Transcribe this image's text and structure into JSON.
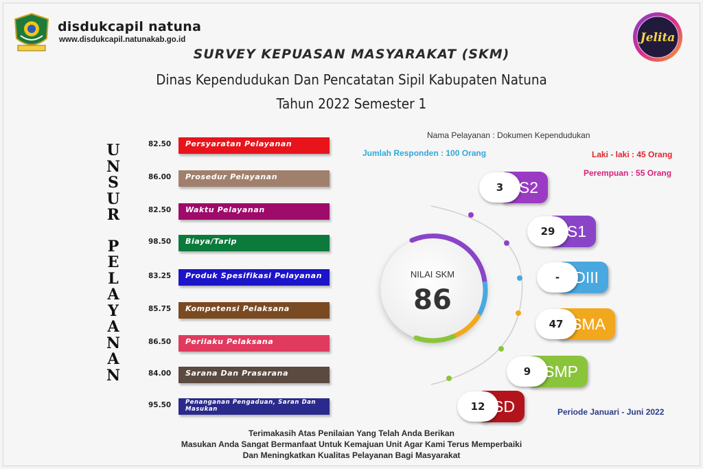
{
  "header": {
    "brand": "disdukcapil natuna",
    "url": "www.disdukcapil.natunakab.go.id",
    "logo_left_icon": "regency-emblem-icon",
    "logo_right_icon": "jelita-dukcapil-logo-icon",
    "logo_right_text": "Jelita"
  },
  "titles": {
    "line1": "SURVEY KEPUASAN MASYARAKAT (SKM)",
    "line2": "Dinas Kependudukan Dan Pencatatan Sipil Kabupaten Natuna",
    "line3": "Tahun 2022 Semester 1"
  },
  "unsur": {
    "word1": [
      "U",
      "N",
      "S",
      "U",
      "R"
    ],
    "word2": [
      "P",
      "E",
      "L",
      "A",
      "Y",
      "A",
      "N",
      "A",
      "N"
    ],
    "items": [
      {
        "score": "82.50",
        "label": "Persyaratan Pelayanan",
        "color": "#e8141b"
      },
      {
        "score": "86.00",
        "label": "Prosedur Pelayanan",
        "color": "#a0806c"
      },
      {
        "score": "82.50",
        "label": "Waktu Pelayanan",
        "color": "#9e0b6a"
      },
      {
        "score": "98.50",
        "label": "Biaya/Tarip",
        "color": "#0b7a3a"
      },
      {
        "score": "83.25",
        "label": "Produk Spesifikasi Pelayanan",
        "color": "#1c14c8"
      },
      {
        "score": "85.75",
        "label": "Kompetensi Pelaksana",
        "color": "#7a4a22"
      },
      {
        "score": "86.50",
        "label": "Perilaku Pelaksana",
        "color": "#e03a5e"
      },
      {
        "score": "84.00",
        "label": "Sarana Dan Prasarana",
        "color": "#5a4a40"
      },
      {
        "score": "95.50",
        "label": "Penanganan Pengaduan, Saran Dan Masukan",
        "color": "#2a2a8c"
      }
    ]
  },
  "info": {
    "nama_pelayanan": "Nama Pelayanan : Dokumen Kependudukan",
    "responden": "Jumlah Responden : 100 Orang",
    "laki": "Laki - laki  :  45 Orang",
    "perempuan": "Perempuan  :  55 Orang",
    "periode": "Periode Januari - Juni 2022"
  },
  "nilai": {
    "label": "NILAI SKM",
    "value": "86"
  },
  "pendidikan": [
    {
      "level": "S2",
      "count": "3",
      "color": "#9b3bc4"
    },
    {
      "level": "S1",
      "count": "29",
      "color": "#8a44c8"
    },
    {
      "level": "DIII",
      "count": "-",
      "color": "#4aa8e0"
    },
    {
      "level": "SMA",
      "count": "47",
      "color": "#f2a81c"
    },
    {
      "level": "SMP",
      "count": "9",
      "color": "#8ac43a"
    },
    {
      "level": "SD",
      "count": "12",
      "color": "#b3141c"
    }
  ],
  "footer": {
    "line1": "Terimakasih Atas Penilaian Yang Telah Anda Berikan",
    "line2": "Masukan Anda Sangat Bermanfaat Untuk Kemajuan Unit Agar Kami Terus Memperbaiki",
    "line3": "Dan Meningkatkan Kualitas Pelayanan Bagi Masyarakat"
  }
}
